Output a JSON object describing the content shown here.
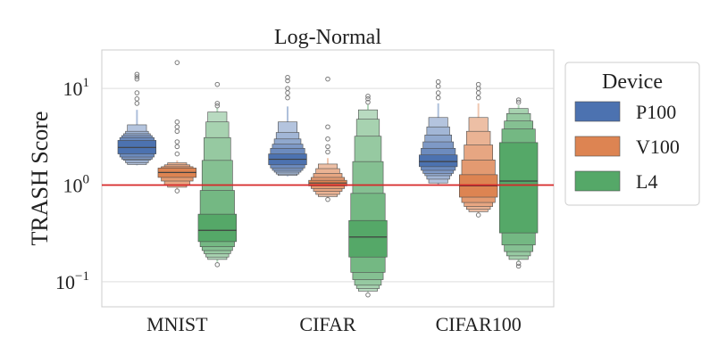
{
  "chart_data": {
    "type": "boxen",
    "title": "Log-Normal",
    "xlabel": "",
    "ylabel": "TRASH Score",
    "yscale": "log",
    "ylim": [
      0.055,
      25
    ],
    "ytick_labels": [
      {
        "value": 0.1,
        "base": "10",
        "exp": "−1"
      },
      {
        "value": 1,
        "base": "10",
        "exp": "0"
      },
      {
        "value": 10,
        "base": "10",
        "exp": "1"
      }
    ],
    "grid": true,
    "reference_line": {
      "value": 1.0,
      "color": "#d62728"
    },
    "categories": [
      "MNIST",
      "CIFAR",
      "CIFAR100"
    ],
    "legend": {
      "title": "Device",
      "placement": "right",
      "entries": [
        {
          "name": "P100",
          "color": "#4c72b0"
        },
        {
          "name": "V100",
          "color": "#dd8452"
        },
        {
          "name": "L4",
          "color": "#55a868"
        }
      ]
    },
    "series": [
      {
        "name": "P100",
        "color": "#4c72b0",
        "groups": [
          {
            "category": "MNIST",
            "median": 2.45,
            "levels": [
              [
                2.1,
                2.9
              ],
              [
                1.95,
                3.1
              ],
              [
                1.85,
                3.25
              ],
              [
                1.8,
                3.4
              ],
              [
                1.7,
                3.6
              ],
              [
                1.63,
                4.2
              ]
            ],
            "whisker": [
              1.6,
              6.0
            ],
            "outliers": [
              7.0,
              7.8,
              9.0,
              12.5,
              13.2,
              14.0
            ]
          },
          {
            "category": "CIFAR",
            "median": 1.85,
            "levels": [
              [
                1.62,
                2.1
              ],
              [
                1.5,
                2.4
              ],
              [
                1.42,
                2.65
              ],
              [
                1.36,
                3.0
              ],
              [
                1.3,
                3.5
              ],
              [
                1.26,
                4.5
              ]
            ],
            "whisker": [
              1.23,
              6.5
            ],
            "outliers": [
              8.0,
              9.0,
              10.0,
              12.0,
              13.0
            ]
          },
          {
            "category": "CIFAR100",
            "median": 1.75,
            "levels": [
              [
                1.55,
                2.05
              ],
              [
                1.42,
                2.4
              ],
              [
                1.32,
                2.8
              ],
              [
                1.25,
                3.3
              ],
              [
                1.15,
                4.0
              ],
              [
                1.05,
                5.0
              ]
            ],
            "whisker": [
              1.0,
              7.0
            ],
            "outliers": [
              8.0,
              9.0,
              10.5,
              11.7
            ]
          }
        ]
      },
      {
        "name": "V100",
        "color": "#dd8452",
        "groups": [
          {
            "category": "MNIST",
            "median": 1.35,
            "levels": [
              [
                1.2,
                1.5
              ],
              [
                1.1,
                1.55
              ],
              [
                1.0,
                1.62
              ],
              [
                0.95,
                1.7
              ]
            ],
            "whisker": [
              0.9,
              1.8
            ],
            "outliers": [
              0.87,
              2.1,
              2.5,
              2.8,
              3.6,
              4.0,
              4.5,
              18.5
            ]
          },
          {
            "category": "CIFAR",
            "median": 1.05,
            "levels": [
              [
                0.98,
                1.12
              ],
              [
                0.92,
                1.2
              ],
              [
                0.86,
                1.32
              ],
              [
                0.8,
                1.48
              ],
              [
                0.76,
                1.65
              ]
            ],
            "whisker": [
              0.73,
              1.9
            ],
            "outliers": [
              0.71,
              2.2,
              2.5,
              3.0,
              4.0,
              12.5
            ]
          },
          {
            "category": "CIFAR100",
            "median": 0.98,
            "levels": [
              [
                0.75,
                1.28
              ],
              [
                0.66,
                1.82
              ],
              [
                0.6,
                2.6
              ],
              [
                0.56,
                3.6
              ],
              [
                0.53,
                5.0
              ]
            ],
            "whisker": [
              0.51,
              7.0
            ],
            "outliers": [
              0.49,
              8.0,
              9.0,
              10.0,
              11.0
            ]
          }
        ]
      },
      {
        "name": "L4",
        "color": "#55a868",
        "groups": [
          {
            "category": "MNIST",
            "median": 0.34,
            "levels": [
              [
                0.26,
                0.5
              ],
              [
                0.23,
                0.88
              ],
              [
                0.21,
                1.8
              ],
              [
                0.195,
                3.1
              ],
              [
                0.18,
                4.5
              ],
              [
                0.17,
                5.7
              ]
            ],
            "whisker": [
              0.16,
              6.3
            ],
            "outliers": [
              0.15,
              6.6,
              7.0,
              11.0
            ]
          },
          {
            "category": "CIFAR",
            "median": 0.29,
            "levels": [
              [
                0.18,
                0.43
              ],
              [
                0.125,
                0.82
              ],
              [
                0.105,
                1.75
              ],
              [
                0.092,
                3.2
              ],
              [
                0.085,
                4.8
              ],
              [
                0.08,
                6.0
              ]
            ],
            "whisker": [
              0.078,
              6.8
            ],
            "outliers": [
              0.073,
              7.2,
              7.8,
              8.3
            ]
          },
          {
            "category": "CIFAR100",
            "median": 1.1,
            "levels": [
              [
                0.32,
                2.75
              ],
              [
                0.24,
                3.8
              ],
              [
                0.205,
                4.6
              ],
              [
                0.185,
                5.5
              ],
              [
                0.17,
                6.2
              ]
            ],
            "whisker": [
              0.16,
              6.7
            ],
            "outliers": [
              0.145,
              0.155,
              7.2,
              7.6
            ]
          }
        ]
      }
    ]
  }
}
